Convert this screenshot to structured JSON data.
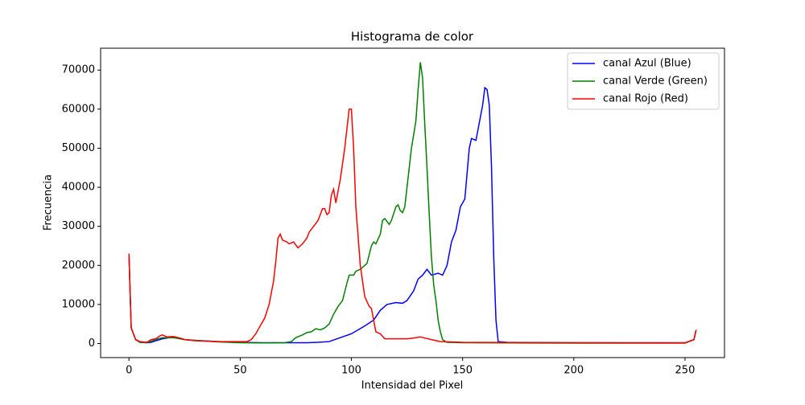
{
  "chart_data": {
    "type": "line",
    "title": "Histograma de color",
    "x_label": "Intensidad del Pixel",
    "y_label": "Frecuencia",
    "xlim": [
      -12.75,
      267.75
    ],
    "xticks": [
      0,
      50,
      100,
      150,
      200,
      250
    ],
    "ylim": [
      -3600,
      75600
    ],
    "yticks": [
      0,
      10000,
      20000,
      30000,
      40000,
      50000,
      60000,
      70000
    ],
    "legend": "upper right",
    "series": [
      {
        "name": "canal Azul (Blue)",
        "color": "#0000ff",
        "x": [
          0,
          1,
          3,
          5,
          8,
          10,
          12,
          15,
          18,
          20,
          25,
          30,
          40,
          50,
          60,
          70,
          80,
          85,
          90,
          95,
          100,
          103,
          106,
          110,
          113,
          116,
          120,
          123,
          125,
          128,
          130,
          132,
          134,
          136,
          139,
          141,
          143,
          145,
          147,
          149,
          151,
          153,
          154,
          156,
          157,
          159,
          160,
          161,
          162,
          163,
          164,
          165,
          166,
          170,
          200,
          250,
          254,
          255
        ],
        "values": [
          23000,
          4000,
          1000,
          300,
          200,
          300,
          700,
          1200,
          1500,
          1600,
          1000,
          800,
          500,
          300,
          200,
          200,
          200,
          300,
          500,
          1500,
          2500,
          3500,
          4500,
          6000,
          8500,
          10000,
          10500,
          10300,
          11000,
          13500,
          16500,
          17500,
          19000,
          17500,
          18000,
          17500,
          20000,
          26000,
          29000,
          35000,
          37000,
          50000,
          52500,
          52000,
          55000,
          61000,
          65500,
          65000,
          61000,
          45000,
          22000,
          6000,
          500,
          300,
          200,
          200,
          1000,
          3500
        ]
      },
      {
        "name": "canal Verde (Green)",
        "color": "#008000",
        "x": [
          0,
          1,
          3,
          5,
          8,
          12,
          15,
          20,
          25,
          30,
          40,
          50,
          60,
          70,
          73,
          75,
          78,
          80,
          82,
          84,
          86,
          88,
          90,
          92,
          94,
          96,
          98,
          99,
          101,
          102,
          104,
          106,
          107,
          109,
          110,
          111,
          113,
          114,
          115,
          117,
          118,
          120,
          121,
          122,
          123,
          124,
          126,
          127,
          129,
          130,
          131,
          132,
          133,
          134,
          135,
          136,
          137,
          138,
          139,
          140,
          141,
          143,
          150,
          200,
          250,
          254,
          255
        ],
        "values": [
          22500,
          4000,
          1000,
          300,
          200,
          1000,
          1500,
          1500,
          1000,
          800,
          400,
          200,
          150,
          200,
          500,
          1500,
          2200,
          2800,
          3000,
          3800,
          3500,
          4000,
          5000,
          7500,
          9500,
          11000,
          15500,
          17500,
          17500,
          18500,
          19000,
          20000,
          20500,
          25000,
          26000,
          25500,
          28000,
          31500,
          32000,
          30500,
          31500,
          35000,
          35500,
          34000,
          33500,
          35000,
          45000,
          50000,
          57000,
          65000,
          72000,
          68000,
          56000,
          45000,
          33000,
          22000,
          15000,
          11000,
          6000,
          3000,
          1000,
          300,
          200,
          100,
          100,
          1000,
          3500
        ]
      },
      {
        "name": "canal Rojo (Red)",
        "color": "#ff0000",
        "x": [
          0,
          1,
          3,
          5,
          8,
          10,
          12,
          14,
          15,
          17,
          20,
          23,
          25,
          30,
          40,
          50,
          53,
          55,
          57,
          59,
          61,
          63,
          65,
          66,
          67,
          68,
          69,
          71,
          72,
          74,
          76,
          78,
          80,
          81,
          83,
          85,
          87,
          88,
          89,
          90,
          91,
          92,
          93,
          95,
          97,
          99,
          100,
          101,
          102,
          104,
          106,
          108,
          109,
          110,
          111,
          113,
          115,
          120,
          125,
          129,
          131,
          133,
          136,
          140,
          150,
          200,
          250,
          254,
          255
        ],
        "values": [
          23000,
          4000,
          1000,
          500,
          300,
          1000,
          1200,
          2000,
          2200,
          1700,
          1800,
          1400,
          1000,
          700,
          500,
          500,
          500,
          1000,
          2500,
          4500,
          6500,
          10000,
          16000,
          21000,
          27000,
          28000,
          26500,
          26000,
          25500,
          26000,
          24500,
          25500,
          27000,
          28500,
          30000,
          31500,
          34500,
          34500,
          33000,
          33500,
          38000,
          39500,
          36000,
          42000,
          50000,
          60000,
          60000,
          50000,
          35000,
          20000,
          12000,
          9500,
          9000,
          6000,
          3000,
          2500,
          1200,
          1200,
          1200,
          1500,
          1700,
          1400,
          1000,
          500,
          300,
          200,
          150,
          1000,
          3500
        ]
      }
    ]
  }
}
